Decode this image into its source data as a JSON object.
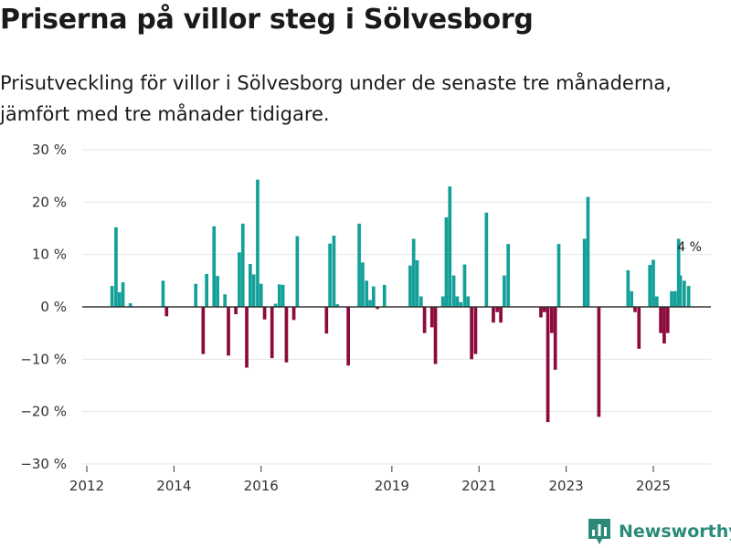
{
  "header": {
    "title": "Priserna på villor steg i Sölvesborg",
    "subtitle": "Prisutveckling för villor i Sölvesborg under de senaste tre månaderna, jämfört med tre månader tidigare."
  },
  "branding": {
    "name": "Newsworthy",
    "icon": "newsworthy-logo-icon"
  },
  "colors": {
    "positive": "#14a098",
    "negative": "#8c0a3c",
    "grid": "#e6e6e6",
    "axis": "#333333"
  },
  "chart_data": {
    "type": "bar",
    "title": "Priserna på villor steg i Sölvesborg",
    "ylabel": "",
    "xlabel": "",
    "ylim": [
      -30,
      30
    ],
    "xlim": [
      2011.9,
      2026.5
    ],
    "grid": true,
    "y_ticks": [
      30,
      20,
      10,
      0,
      -10,
      -20,
      -30
    ],
    "y_tick_labels": [
      "30 %",
      "20 %",
      "10 %",
      "0 %",
      "−10 %",
      "−20 %",
      "−30 %"
    ],
    "x_ticks": [
      2012,
      2014,
      2016,
      2019,
      2021,
      2023,
      2025
    ],
    "x_tick_labels": [
      "2012",
      "2014",
      "2016",
      "2019",
      "2021",
      "2023",
      "2025"
    ],
    "annotation": {
      "label": "4 %",
      "x": 2025.81,
      "value": 4
    },
    "bars": [
      {
        "x": 2012.58,
        "value": 4
      },
      {
        "x": 2012.67,
        "value": 15.2
      },
      {
        "x": 2012.75,
        "value": 2.8
      },
      {
        "x": 2012.83,
        "value": 4.7
      },
      {
        "x": 2013.0,
        "value": 0.7
      },
      {
        "x": 2013.75,
        "value": 5
      },
      {
        "x": 2013.83,
        "value": -1.8
      },
      {
        "x": 2014.5,
        "value": 4.4
      },
      {
        "x": 2014.67,
        "value": -9
      },
      {
        "x": 2014.75,
        "value": 6.3
      },
      {
        "x": 2014.92,
        "value": 15.4
      },
      {
        "x": 2015.0,
        "value": 5.9
      },
      {
        "x": 2015.17,
        "value": 2.4
      },
      {
        "x": 2015.25,
        "value": -9.3
      },
      {
        "x": 2015.42,
        "value": -1.4
      },
      {
        "x": 2015.5,
        "value": 10.4
      },
      {
        "x": 2015.58,
        "value": 15.9
      },
      {
        "x": 2015.67,
        "value": -11.6
      },
      {
        "x": 2015.75,
        "value": 8.2
      },
      {
        "x": 2015.83,
        "value": 6.2
      },
      {
        "x": 2015.92,
        "value": 24.3
      },
      {
        "x": 2016.0,
        "value": 4.4
      },
      {
        "x": 2016.08,
        "value": -2.4
      },
      {
        "x": 2016.25,
        "value": -9.8
      },
      {
        "x": 2016.33,
        "value": 0.6
      },
      {
        "x": 2016.42,
        "value": 4.3
      },
      {
        "x": 2016.5,
        "value": 4.2
      },
      {
        "x": 2016.58,
        "value": -10.6
      },
      {
        "x": 2016.75,
        "value": -2.5
      },
      {
        "x": 2016.83,
        "value": 13.5
      },
      {
        "x": 2017.5,
        "value": -5.1
      },
      {
        "x": 2017.58,
        "value": 12.1
      },
      {
        "x": 2017.67,
        "value": 13.6
      },
      {
        "x": 2017.75,
        "value": 0.5
      },
      {
        "x": 2018.0,
        "value": -11.2
      },
      {
        "x": 2018.25,
        "value": 15.9
      },
      {
        "x": 2018.33,
        "value": 8.5
      },
      {
        "x": 2018.42,
        "value": 5
      },
      {
        "x": 2018.5,
        "value": 1.3
      },
      {
        "x": 2018.58,
        "value": 3.9
      },
      {
        "x": 2018.67,
        "value": -0.4
      },
      {
        "x": 2018.83,
        "value": 4.2
      },
      {
        "x": 2019.42,
        "value": 7.9
      },
      {
        "x": 2019.5,
        "value": 13
      },
      {
        "x": 2019.58,
        "value": 8.9
      },
      {
        "x": 2019.67,
        "value": 2
      },
      {
        "x": 2019.75,
        "value": -5
      },
      {
        "x": 2019.92,
        "value": -3.9
      },
      {
        "x": 2020.0,
        "value": -10.9
      },
      {
        "x": 2020.17,
        "value": 2
      },
      {
        "x": 2020.25,
        "value": 17.1
      },
      {
        "x": 2020.33,
        "value": 23
      },
      {
        "x": 2020.42,
        "value": 6
      },
      {
        "x": 2020.5,
        "value": 2
      },
      {
        "x": 2020.58,
        "value": 0.9
      },
      {
        "x": 2020.67,
        "value": 8.1
      },
      {
        "x": 2020.75,
        "value": 2
      },
      {
        "x": 2020.83,
        "value": -10
      },
      {
        "x": 2020.92,
        "value": -9
      },
      {
        "x": 2021.17,
        "value": 18
      },
      {
        "x": 2021.33,
        "value": -3
      },
      {
        "x": 2021.42,
        "value": -1
      },
      {
        "x": 2021.5,
        "value": -3
      },
      {
        "x": 2021.58,
        "value": 6
      },
      {
        "x": 2021.67,
        "value": 12
      },
      {
        "x": 2022.42,
        "value": -2
      },
      {
        "x": 2022.5,
        "value": -1
      },
      {
        "x": 2022.58,
        "value": -22
      },
      {
        "x": 2022.67,
        "value": -5
      },
      {
        "x": 2022.75,
        "value": -12
      },
      {
        "x": 2022.83,
        "value": 12
      },
      {
        "x": 2023.42,
        "value": 13
      },
      {
        "x": 2023.5,
        "value": 21
      },
      {
        "x": 2023.75,
        "value": -21
      },
      {
        "x": 2024.42,
        "value": 7
      },
      {
        "x": 2024.5,
        "value": 3
      },
      {
        "x": 2024.58,
        "value": -1
      },
      {
        "x": 2024.67,
        "value": -8
      },
      {
        "x": 2024.92,
        "value": 8
      },
      {
        "x": 2025.0,
        "value": 9
      },
      {
        "x": 2025.08,
        "value": 2
      },
      {
        "x": 2025.17,
        "value": -5
      },
      {
        "x": 2025.25,
        "value": -7
      },
      {
        "x": 2025.33,
        "value": -5
      },
      {
        "x": 2025.42,
        "value": 3
      },
      {
        "x": 2025.5,
        "value": 3
      },
      {
        "x": 2025.58,
        "value": 13
      },
      {
        "x": 2025.62,
        "value": 6
      },
      {
        "x": 2025.71,
        "value": 5
      },
      {
        "x": 2025.81,
        "value": 4
      }
    ]
  }
}
